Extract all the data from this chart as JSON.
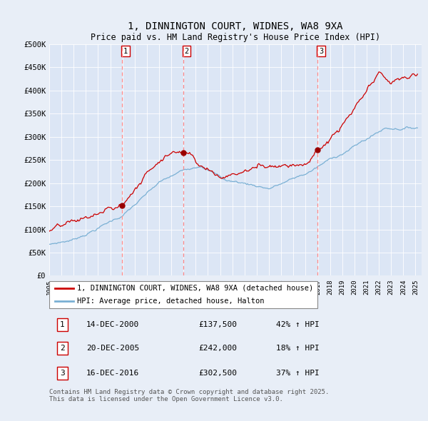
{
  "title": "1, DINNINGTON COURT, WIDNES, WA8 9XA",
  "subtitle": "Price paid vs. HM Land Registry's House Price Index (HPI)",
  "ylim": [
    0,
    500000
  ],
  "yticks": [
    0,
    50000,
    100000,
    150000,
    200000,
    250000,
    300000,
    350000,
    400000,
    450000,
    500000
  ],
  "ytick_labels": [
    "£0",
    "£50K",
    "£100K",
    "£150K",
    "£200K",
    "£250K",
    "£300K",
    "£350K",
    "£400K",
    "£450K",
    "£500K"
  ],
  "background_color": "#e8eef7",
  "plot_bg_color": "#dce6f5",
  "grid_color": "#ffffff",
  "legend_label_red": "1, DINNINGTON COURT, WIDNES, WA8 9XA (detached house)",
  "legend_label_blue": "HPI: Average price, detached house, Halton",
  "transactions": [
    {
      "num": 1,
      "date": "14-DEC-2000",
      "price": 137500,
      "hpi_change": "42% ↑ HPI",
      "year": 2000.96
    },
    {
      "num": 2,
      "date": "20-DEC-2005",
      "price": 242000,
      "hpi_change": "18% ↑ HPI",
      "year": 2005.96
    },
    {
      "num": 3,
      "date": "16-DEC-2016",
      "price": 302500,
      "hpi_change": "37% ↑ HPI",
      "year": 2016.96
    }
  ],
  "footer": "Contains HM Land Registry data © Crown copyright and database right 2025.\nThis data is licensed under the Open Government Licence v3.0.",
  "red_color": "#cc0000",
  "blue_color": "#7ab0d4",
  "dot_color": "#990000",
  "vline_color": "#ff8888",
  "title_fontsize": 10,
  "subtitle_fontsize": 9
}
